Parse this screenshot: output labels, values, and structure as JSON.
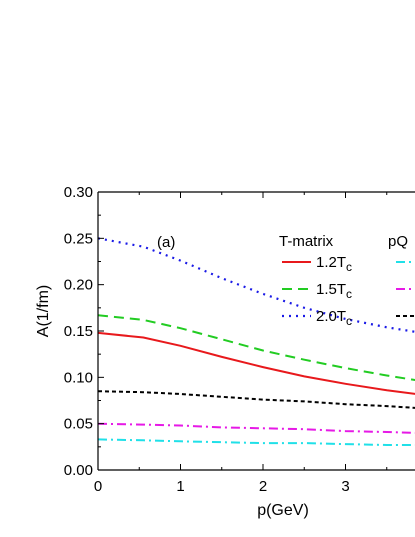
{
  "chart_data": {
    "type": "line",
    "panel_label": "(a)",
    "xlabel": "p(GeV)",
    "ylabel": "A(1/fm)",
    "xlim": [
      0,
      3.85
    ],
    "ylim": [
      0,
      0.3
    ],
    "xticks": [
      "0",
      "1",
      "2",
      "3"
    ],
    "yticks": [
      "0.00",
      "0.05",
      "0.10",
      "0.15",
      "0.20",
      "0.25",
      "0.30"
    ],
    "legend_headers": [
      "T-matrix",
      "pQ"
    ],
    "series": [
      {
        "name": "1.2T",
        "subscript": "c",
        "group": "T-matrix",
        "color": "#e8191c",
        "dash": "solid",
        "x": [
          0,
          0.55,
          1.0,
          1.5,
          2.0,
          2.5,
          3.0,
          3.5,
          3.85
        ],
        "y": [
          0.148,
          0.143,
          0.134,
          0.122,
          0.111,
          0.101,
          0.093,
          0.086,
          0.082
        ]
      },
      {
        "name": "1.5T",
        "subscript": "c",
        "group": "T-matrix",
        "color": "#22cc22",
        "dash": "dash",
        "x": [
          0,
          0.55,
          1.0,
          1.5,
          2.0,
          2.5,
          3.0,
          3.5,
          3.85
        ],
        "y": [
          0.167,
          0.162,
          0.153,
          0.141,
          0.129,
          0.119,
          0.11,
          0.102,
          0.097
        ]
      },
      {
        "name": "2.0T",
        "subscript": "c",
        "group": "T-matrix",
        "color": "#1a1ae6",
        "dash": "dot",
        "x": [
          0,
          0.55,
          1.0,
          1.5,
          2.0,
          2.5,
          3.0,
          3.5,
          3.85
        ],
        "y": [
          0.25,
          0.241,
          0.226,
          0.207,
          0.19,
          0.175,
          0.163,
          0.154,
          0.149
        ]
      },
      {
        "name": "",
        "group": "pQ",
        "color": "#20e0e8",
        "dash": "dashdot",
        "x": [
          0,
          0.55,
          1.0,
          1.5,
          2.0,
          2.5,
          3.0,
          3.5,
          3.85
        ],
        "y": [
          0.033,
          0.032,
          0.031,
          0.03,
          0.029,
          0.029,
          0.028,
          0.027,
          0.027
        ]
      },
      {
        "name": "",
        "group": "pQ",
        "color": "#e619e6",
        "dash": "dashdot",
        "x": [
          0,
          0.55,
          1.0,
          1.5,
          2.0,
          2.5,
          3.0,
          3.5,
          3.85
        ],
        "y": [
          0.05,
          0.049,
          0.048,
          0.046,
          0.045,
          0.044,
          0.042,
          0.041,
          0.04
        ]
      },
      {
        "name": "",
        "group": "pQ",
        "color": "#000000",
        "dash": "shortdash",
        "x": [
          0,
          0.55,
          1.0,
          1.5,
          2.0,
          2.5,
          3.0,
          3.5,
          3.85
        ],
        "y": [
          0.085,
          0.084,
          0.082,
          0.079,
          0.076,
          0.074,
          0.071,
          0.069,
          0.067
        ]
      }
    ]
  }
}
